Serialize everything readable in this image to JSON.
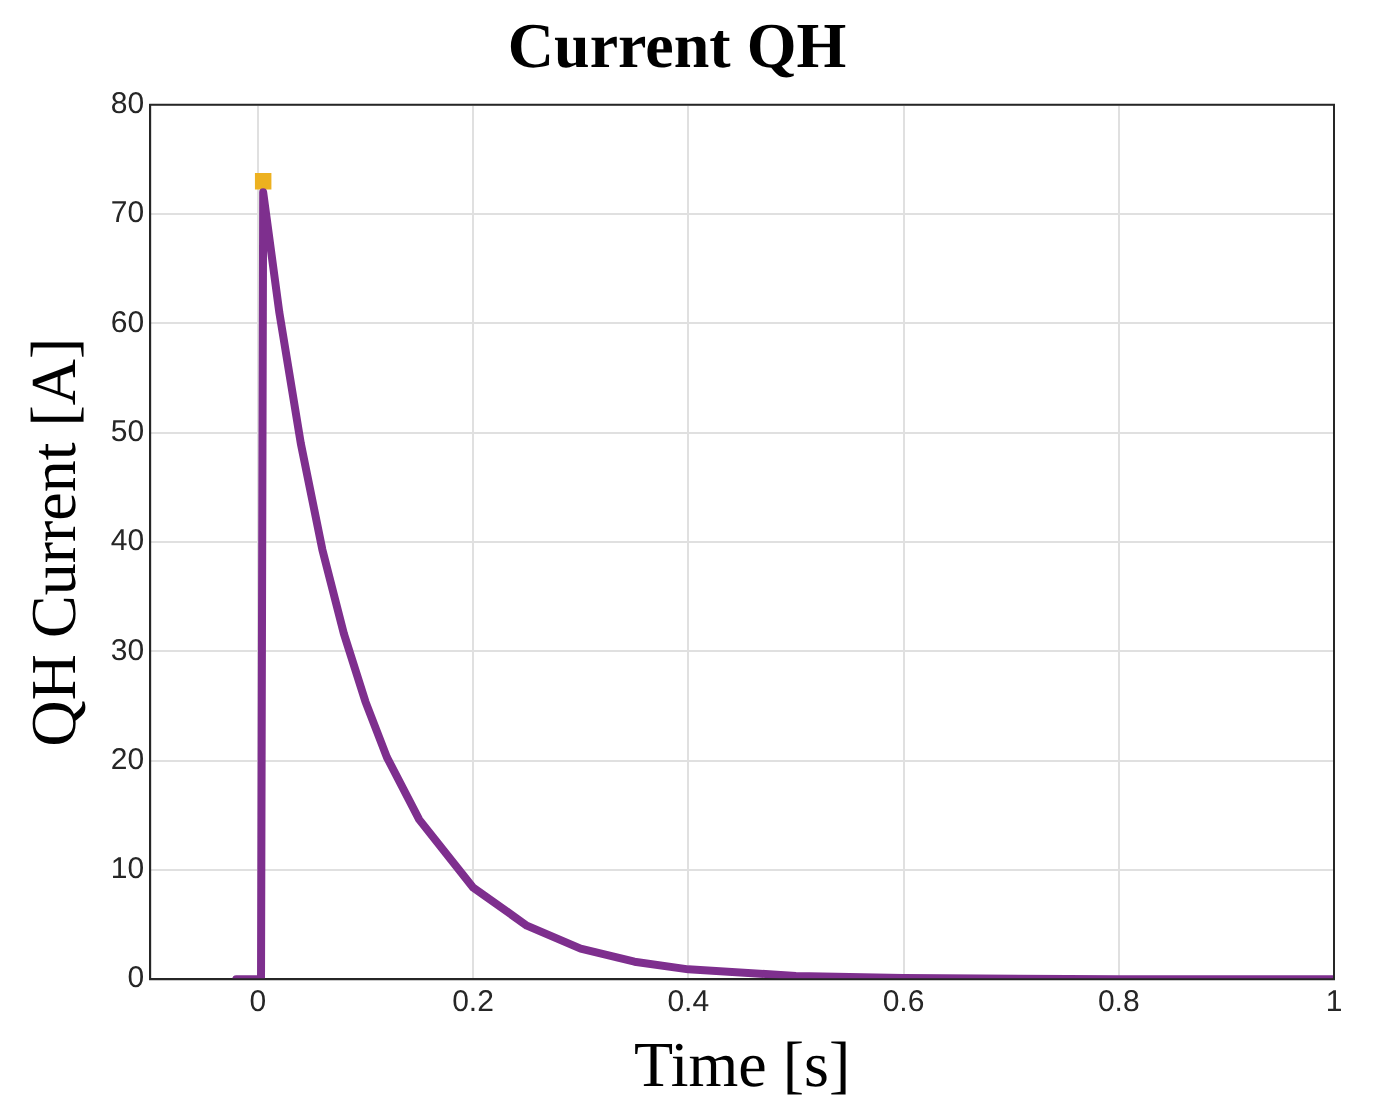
{
  "chart_data": {
    "type": "line",
    "title": "Current QH",
    "xlabel": "Time [s]",
    "ylabel": "QH Current [A]",
    "xlim": [
      -0.1,
      1
    ],
    "xticks": [
      0,
      0.2,
      0.4,
      0.6,
      0.8,
      1
    ],
    "ylim": [
      0,
      80
    ],
    "yticks": [
      0,
      10,
      20,
      30,
      40,
      50,
      60,
      70,
      80
    ],
    "grid": true,
    "marker": "none",
    "line_style": "solid",
    "series": [
      {
        "type": "scatter",
        "marker": "square",
        "color": "#edb120",
        "x": [
          0.005
        ],
        "values": [
          73
        ]
      },
      {
        "color": "#7e2f8e",
        "x": [
          -0.02,
          0,
          0.003,
          0.005,
          0.02,
          0.04,
          0.06,
          0.08,
          0.1,
          0.12,
          0.15,
          0.2,
          0.25,
          0.3,
          0.35,
          0.4,
          0.5,
          0.6,
          0.8,
          1
        ],
        "values": [
          0,
          0,
          0,
          72,
          61,
          49,
          39.3,
          31.6,
          25.4,
          20.3,
          14.6,
          8.4,
          4.9,
          2.8,
          1.6,
          0.9,
          0.3,
          0.1,
          0,
          0
        ]
      }
    ]
  }
}
